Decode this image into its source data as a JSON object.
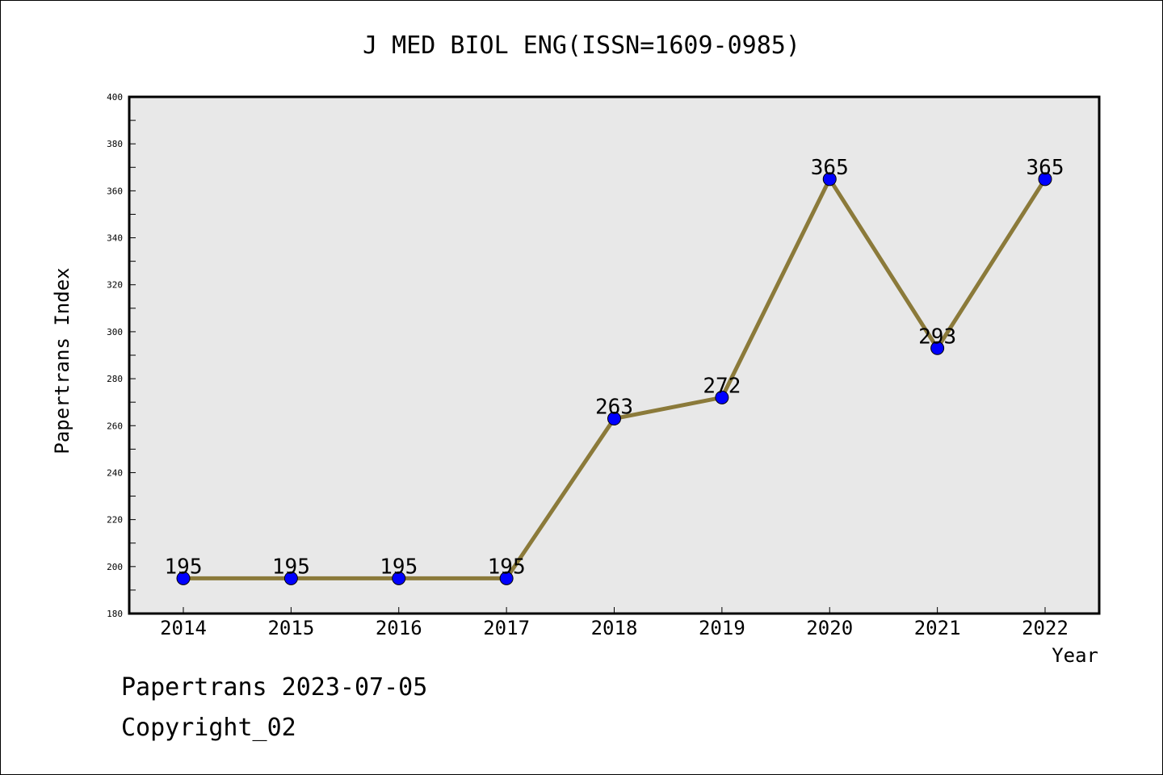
{
  "chart_data": {
    "type": "line",
    "title": "J MED BIOL ENG(ISSN=1609-0985)",
    "xlabel": "Year",
    "ylabel": "Papertrans Index",
    "categories": [
      "2014",
      "2015",
      "2016",
      "2017",
      "2018",
      "2019",
      "2020",
      "2021",
      "2022"
    ],
    "series": [
      {
        "values": [
          195,
          195,
          195,
          195,
          263,
          272,
          365,
          293,
          365
        ]
      }
    ],
    "data_labels": [
      "195",
      "195",
      "195",
      "195",
      "263",
      "272",
      "365",
      "293",
      "365"
    ],
    "ylim": [
      180,
      400
    ],
    "yticks": [
      "180",
      "200",
      "220",
      "240",
      "260",
      "280",
      "300",
      "320",
      "340",
      "360",
      "380",
      "400"
    ],
    "grid": false,
    "legend": "none",
    "colors": {
      "line": "#8b7a3a",
      "marker": "#0000ff",
      "plot_background": "#e8e8e8"
    }
  },
  "footer": {
    "date_line": "Papertrans 2023-07-05",
    "copyright": "Copyright_02"
  }
}
